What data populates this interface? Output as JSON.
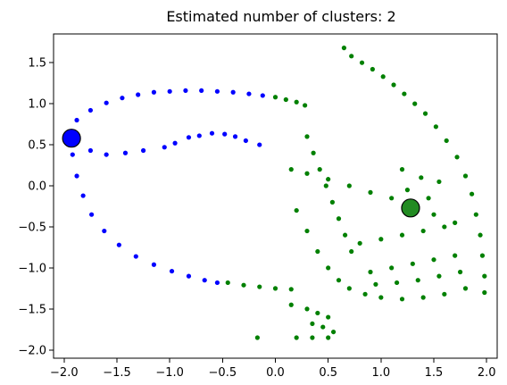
{
  "chart_data": {
    "type": "scatter",
    "title": "Estimated number of clusters: 2",
    "xlabel": "",
    "ylabel": "",
    "xlim": [
      -2.1,
      2.1
    ],
    "ylim": [
      -2.1,
      1.85
    ],
    "x_ticks": [
      -2.0,
      -1.5,
      -1.0,
      -0.5,
      0.0,
      0.5,
      1.0,
      1.5,
      2.0
    ],
    "x_tick_labels": [
      "−2.0",
      "−1.5",
      "−1.0",
      "−0.5",
      "0.0",
      "0.5",
      "1.0",
      "1.5",
      "2.0"
    ],
    "y_ticks": [
      -2.0,
      -1.5,
      -1.0,
      -0.5,
      0.0,
      0.5,
      1.0,
      1.5
    ],
    "y_tick_labels": [
      "−2.0",
      "−1.5",
      "−1.0",
      "−0.5",
      "0.0",
      "0.5",
      "1.0",
      "1.5"
    ],
    "grid": false,
    "series": [
      {
        "color": "#0000ff",
        "points": [
          [
            -1.93,
            0.6
          ],
          [
            -1.92,
            0.38
          ],
          [
            -1.88,
            0.12
          ],
          [
            -1.82,
            -0.12
          ],
          [
            -1.74,
            -0.35
          ],
          [
            -1.62,
            -0.55
          ],
          [
            -1.48,
            -0.72
          ],
          [
            -1.32,
            -0.86
          ],
          [
            -1.15,
            -0.96
          ],
          [
            -0.98,
            -1.04
          ],
          [
            -0.82,
            -1.1
          ],
          [
            -0.67,
            -1.15
          ],
          [
            -0.55,
            -1.18
          ],
          [
            -1.88,
            0.8
          ],
          [
            -1.75,
            0.92
          ],
          [
            -1.6,
            1.01
          ],
          [
            -1.45,
            1.07
          ],
          [
            -1.3,
            1.11
          ],
          [
            -1.15,
            1.14
          ],
          [
            -1.0,
            1.15
          ],
          [
            -0.85,
            1.16
          ],
          [
            -0.7,
            1.16
          ],
          [
            -0.55,
            1.15
          ],
          [
            -0.4,
            1.14
          ],
          [
            -0.25,
            1.12
          ],
          [
            -0.12,
            1.1
          ],
          [
            -1.75,
            0.43
          ],
          [
            -1.6,
            0.38
          ],
          [
            -1.42,
            0.4
          ],
          [
            -1.25,
            0.43
          ],
          [
            -1.05,
            0.47
          ],
          [
            -0.95,
            0.52
          ],
          [
            -0.82,
            0.59
          ],
          [
            -0.72,
            0.61
          ],
          [
            -0.6,
            0.64
          ],
          [
            -0.48,
            0.63
          ],
          [
            -0.38,
            0.6
          ],
          [
            -0.28,
            0.55
          ],
          [
            -0.15,
            0.5
          ]
        ]
      },
      {
        "color": "#008000",
        "points": [
          [
            -0.45,
            -1.18
          ],
          [
            -0.3,
            -1.21
          ],
          [
            -0.15,
            -1.23
          ],
          [
            0.0,
            -1.25
          ],
          [
            0.15,
            -1.26
          ],
          [
            0.0,
            1.08
          ],
          [
            0.1,
            1.05
          ],
          [
            0.2,
            1.02
          ],
          [
            0.28,
            0.98
          ],
          [
            0.65,
            1.68
          ],
          [
            0.72,
            1.58
          ],
          [
            0.82,
            1.5
          ],
          [
            0.92,
            1.42
          ],
          [
            1.02,
            1.33
          ],
          [
            1.12,
            1.23
          ],
          [
            1.22,
            1.12
          ],
          [
            1.32,
            1.0
          ],
          [
            1.42,
            0.88
          ],
          [
            1.52,
            0.72
          ],
          [
            1.62,
            0.55
          ],
          [
            1.72,
            0.35
          ],
          [
            1.8,
            0.12
          ],
          [
            1.86,
            -0.1
          ],
          [
            1.9,
            -0.35
          ],
          [
            1.94,
            -0.6
          ],
          [
            1.96,
            -0.85
          ],
          [
            1.98,
            -1.1
          ],
          [
            1.98,
            -1.3
          ],
          [
            0.3,
            0.6
          ],
          [
            0.36,
            0.4
          ],
          [
            0.42,
            0.2
          ],
          [
            0.48,
            0.0
          ],
          [
            0.54,
            -0.2
          ],
          [
            0.6,
            -0.4
          ],
          [
            0.66,
            -0.6
          ],
          [
            0.72,
            -0.8
          ],
          [
            0.15,
            0.2
          ],
          [
            0.3,
            0.15
          ],
          [
            0.5,
            0.08
          ],
          [
            0.7,
            0.0
          ],
          [
            0.9,
            -0.08
          ],
          [
            1.1,
            -0.15
          ],
          [
            1.3,
            -0.25
          ],
          [
            1.5,
            -0.35
          ],
          [
            1.7,
            -0.45
          ],
          [
            0.2,
            -0.3
          ],
          [
            0.3,
            -0.55
          ],
          [
            0.4,
            -0.8
          ],
          [
            0.5,
            -1.0
          ],
          [
            0.6,
            -1.15
          ],
          [
            0.7,
            -1.25
          ],
          [
            0.85,
            -1.32
          ],
          [
            1.0,
            -1.36
          ],
          [
            1.2,
            -1.38
          ],
          [
            1.4,
            -1.36
          ],
          [
            1.6,
            -1.32
          ],
          [
            1.8,
            -1.25
          ],
          [
            0.9,
            -1.05
          ],
          [
            1.1,
            -1.0
          ],
          [
            1.3,
            -0.95
          ],
          [
            1.5,
            -0.9
          ],
          [
            1.7,
            -0.85
          ],
          [
            0.8,
            -0.7
          ],
          [
            1.0,
            -0.65
          ],
          [
            1.2,
            -0.6
          ],
          [
            1.4,
            -0.55
          ],
          [
            1.6,
            -0.5
          ],
          [
            0.95,
            -1.2
          ],
          [
            1.15,
            -1.18
          ],
          [
            1.35,
            -1.15
          ],
          [
            1.55,
            -1.1
          ],
          [
            1.75,
            -1.05
          ],
          [
            1.2,
            0.2
          ],
          [
            1.25,
            -0.05
          ],
          [
            1.38,
            0.1
          ],
          [
            1.45,
            -0.15
          ],
          [
            1.55,
            0.05
          ],
          [
            0.3,
            -1.5
          ],
          [
            0.4,
            -1.55
          ],
          [
            0.5,
            -1.6
          ],
          [
            0.35,
            -1.68
          ],
          [
            0.45,
            -1.72
          ],
          [
            0.55,
            -1.78
          ],
          [
            0.2,
            -1.85
          ],
          [
            0.35,
            -1.85
          ],
          [
            0.5,
            -1.85
          ],
          [
            -0.17,
            -1.85
          ],
          [
            0.15,
            -1.45
          ]
        ]
      }
    ],
    "centers": [
      {
        "x": -1.93,
        "y": 0.58,
        "color": "#0000ff"
      },
      {
        "x": 1.28,
        "y": -0.27,
        "color": "#228b22"
      }
    ]
  }
}
